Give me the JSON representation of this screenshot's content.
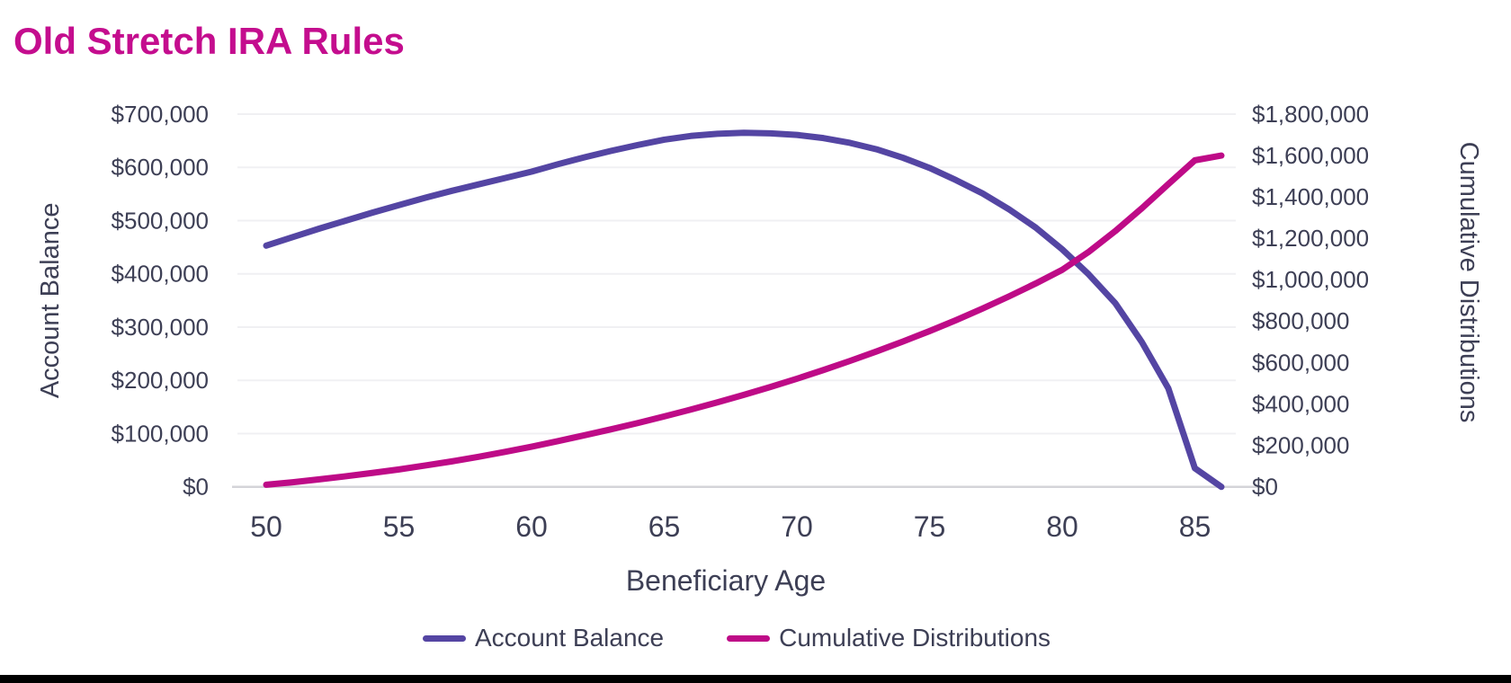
{
  "page_title": "Old Stretch IRA Rules",
  "colors": {
    "title": "#C40D8E",
    "account_balance_line": "#5445A3",
    "cumulative_distributions_line": "#BE0B87",
    "axis_text": "#3D3F55",
    "gridline": "#F0F0F3",
    "zero_axis_line": "#D4D4D9",
    "background": "#FFFFFF",
    "bottom_bar": "#000000"
  },
  "chart_data": {
    "type": "line",
    "title": "Old Stretch IRA Rules",
    "xlabel": "Beneficiary Age",
    "grid": "horizontal",
    "legend_position": "bottom",
    "x": [
      50,
      51,
      52,
      53,
      54,
      55,
      56,
      57,
      58,
      59,
      60,
      61,
      62,
      63,
      64,
      65,
      66,
      67,
      68,
      69,
      70,
      71,
      72,
      73,
      74,
      75,
      76,
      77,
      78,
      79,
      80,
      81,
      82,
      83,
      84,
      85,
      86
    ],
    "x_axis": {
      "title": "Beneficiary Age",
      "tick_values": [
        50,
        55,
        60,
        65,
        70,
        75,
        80,
        85
      ],
      "tick_labels": [
        "50",
        "55",
        "60",
        "65",
        "70",
        "75",
        "80",
        "85"
      ]
    },
    "left_axis": {
      "title": "Account Balance",
      "range": [
        0,
        700000
      ],
      "tick_values": [
        0,
        100000,
        200000,
        300000,
        400000,
        500000,
        600000,
        700000
      ],
      "tick_labels": [
        "$0",
        "$100,000",
        "$200,000",
        "$300,000",
        "$400,000",
        "$500,000",
        "$600,000",
        "$700,000"
      ]
    },
    "right_axis": {
      "title": "Cumulative Distributions",
      "range": [
        0,
        1800000
      ],
      "tick_values": [
        0,
        200000,
        400000,
        600000,
        800000,
        1000000,
        1200000,
        1400000,
        1600000,
        1800000
      ],
      "tick_labels": [
        "$0",
        "$200,000",
        "$400,000",
        "$600,000",
        "$800,000",
        "$1,000,000",
        "$1,200,000",
        "$1,400,000",
        "$1,600,000",
        "$1,800,000"
      ]
    },
    "series": [
      {
        "name": "Account Balance",
        "axis": "left",
        "color": "#5445A3",
        "values": [
          453000,
          469000,
          485000,
          500000,
          515000,
          529000,
          543000,
          556000,
          568000,
          580000,
          592000,
          606000,
          619000,
          631000,
          642000,
          652000,
          659000,
          663000,
          665000,
          664000,
          661000,
          655000,
          646000,
          634000,
          618000,
          599000,
          576000,
          551000,
          521000,
          487000,
          446000,
          399000,
          345000,
          272000,
          185000,
          35000,
          0
        ]
      },
      {
        "name": "Cumulative Distributions",
        "axis": "right",
        "color": "#BE0B87",
        "values": [
          10000,
          22000,
          36000,
          51000,
          67000,
          84000,
          103000,
          123000,
          145000,
          169000,
          194000,
          221000,
          249000,
          278000,
          308000,
          340000,
          373000,
          408000,
          444000,
          482000,
          522000,
          564000,
          608000,
          654000,
          702000,
          752000,
          805000,
          861000,
          920000,
          982000,
          1048000,
          1135000,
          1235000,
          1345000,
          1462000,
          1577000,
          1600000
        ]
      }
    ]
  }
}
